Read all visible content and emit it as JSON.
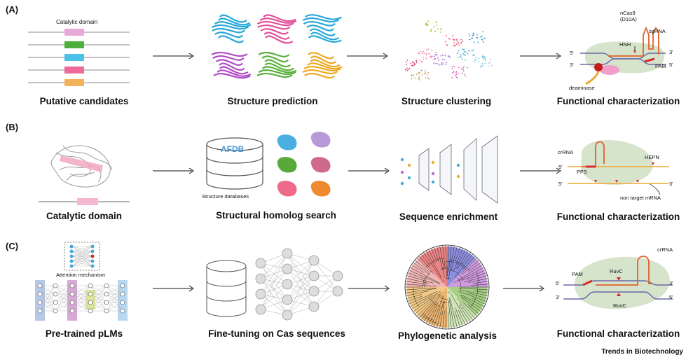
{
  "panels": [
    {
      "label": "(A)",
      "steps": [
        "Putative candidates",
        "Structure prediction",
        "Structure clustering",
        "Functional characterization"
      ],
      "catalytic_domain_label": "Catalytic domain",
      "candidate_colors": [
        "#e8a8d8",
        "#4caf3a",
        "#4cc0e8",
        "#ee6a9a",
        "#f3b25a"
      ],
      "structure_colors": [
        "#26a8d8",
        "#e0509a",
        "#26a8d8",
        "#b04cc8",
        "#58b03a",
        "#f0a820"
      ],
      "func_labels": {
        "ncas9": "nCas9\n(D10A)",
        "sgrna": "sgRNA",
        "hnh": "HNH",
        "pam": "PAM",
        "deaminase": "deaminase",
        "five_top": "5'",
        "three_top": "3'",
        "three_bot": "3'",
        "five_bot": "5'"
      }
    },
    {
      "label": "(B)",
      "steps": [
        "Catalytic domain",
        "Structural homolog search",
        "Sequence enrichment",
        "Functional characterization"
      ],
      "db_label": "AFDB",
      "db_caption": "Structure databases",
      "blob_colors": [
        "#4aaee0",
        "#b89ad8",
        "#58a83a",
        "#d06a8a",
        "#ee6a8a",
        "#f08a30"
      ],
      "func_labels": {
        "crrna": "crRNA",
        "hepn": "HEPN",
        "pfs": "PFS",
        "five_top": "5'",
        "five_bot": "5'",
        "three_bot": "3'",
        "non_target": "non target mRNA"
      }
    },
    {
      "label": "(C)",
      "steps": [
        "Pre-trained pLMs",
        "Fine-tuning on Cas sequences",
        "Phylogenetic analysis",
        "Functional characterization"
      ],
      "attention_label": "Attention mechanism",
      "func_labels": {
        "crrna": "crRNA",
        "pam": "PAM",
        "ruvc_top": "RuvC",
        "ruvc_bot": "RuvC",
        "five_top": "5'",
        "three_top": "3'",
        "three_bot": "3'",
        "five_bot": "5'"
      }
    }
  ],
  "footer": "Trends in Biotechnology",
  "colors": {
    "accent_orange": "#e0622a",
    "strand_purple": "#6a6aa8",
    "strand_orange": "#f0a830",
    "blob_green": "#d6e4cc",
    "cas_red": "#d82a2a"
  }
}
